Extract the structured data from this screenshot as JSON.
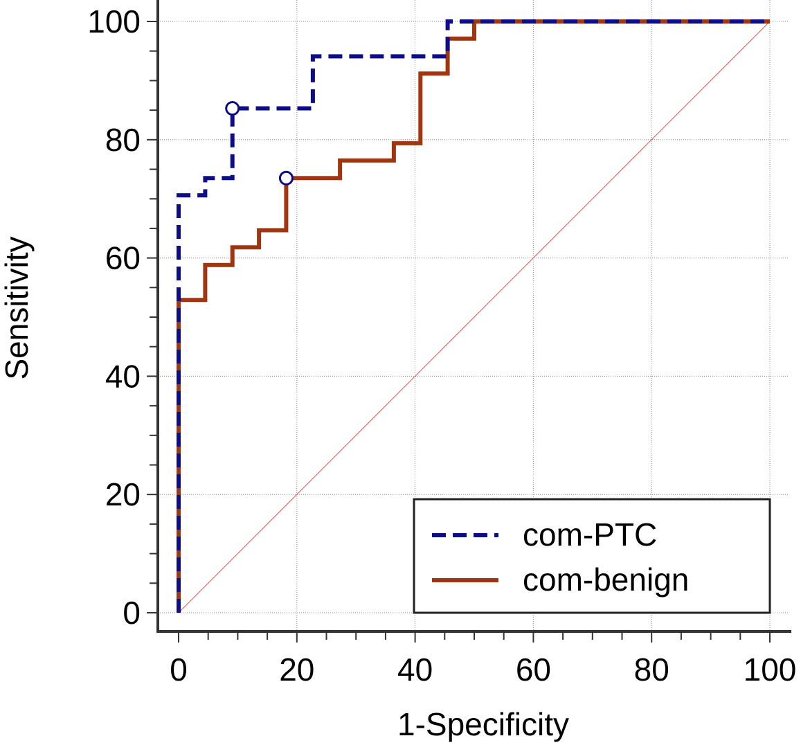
{
  "chart_data": {
    "type": "line",
    "title": "",
    "xlabel": "1-Specificity",
    "ylabel": "Sensitivity",
    "xlim": [
      0,
      100
    ],
    "ylim": [
      0,
      100
    ],
    "x_ticks": [
      0,
      20,
      40,
      60,
      80,
      100
    ],
    "y_ticks": [
      0,
      20,
      40,
      60,
      80,
      100
    ],
    "grid": true,
    "legend_position": "bottom-right",
    "reference_line": {
      "from": [
        0,
        0
      ],
      "to": [
        100,
        100
      ],
      "color": "#d9534f"
    },
    "series": [
      {
        "name": "com-PTC",
        "color": "#0d0d8a",
        "style": "dashed",
        "x": [
          0,
          0,
          0,
          0,
          4.5,
          4.5,
          9.1,
          9.1,
          22.7,
          22.7,
          45.5,
          45.5,
          50,
          100
        ],
        "y": [
          0,
          52.9,
          52.9,
          70.6,
          70.6,
          73.5,
          73.5,
          85.3,
          85.3,
          94.1,
          94.1,
          100,
          100,
          100
        ],
        "marker": {
          "x": 9.1,
          "y": 85.3
        }
      },
      {
        "name": "com-benign",
        "color": "#a0360f",
        "style": "solid",
        "x": [
          0,
          0,
          4.5,
          4.5,
          9.1,
          9.1,
          13.6,
          13.6,
          18.2,
          18.2,
          27.3,
          27.3,
          36.4,
          36.4,
          40.9,
          40.9,
          45.5,
          45.5,
          50,
          50,
          100
        ],
        "y": [
          0,
          52.9,
          52.9,
          58.8,
          58.8,
          61.8,
          61.8,
          64.7,
          64.7,
          73.5,
          73.5,
          76.5,
          76.5,
          79.4,
          79.4,
          91.2,
          91.2,
          97.1,
          97.1,
          100,
          100
        ],
        "marker": {
          "x": 18.2,
          "y": 73.5
        }
      }
    ]
  }
}
